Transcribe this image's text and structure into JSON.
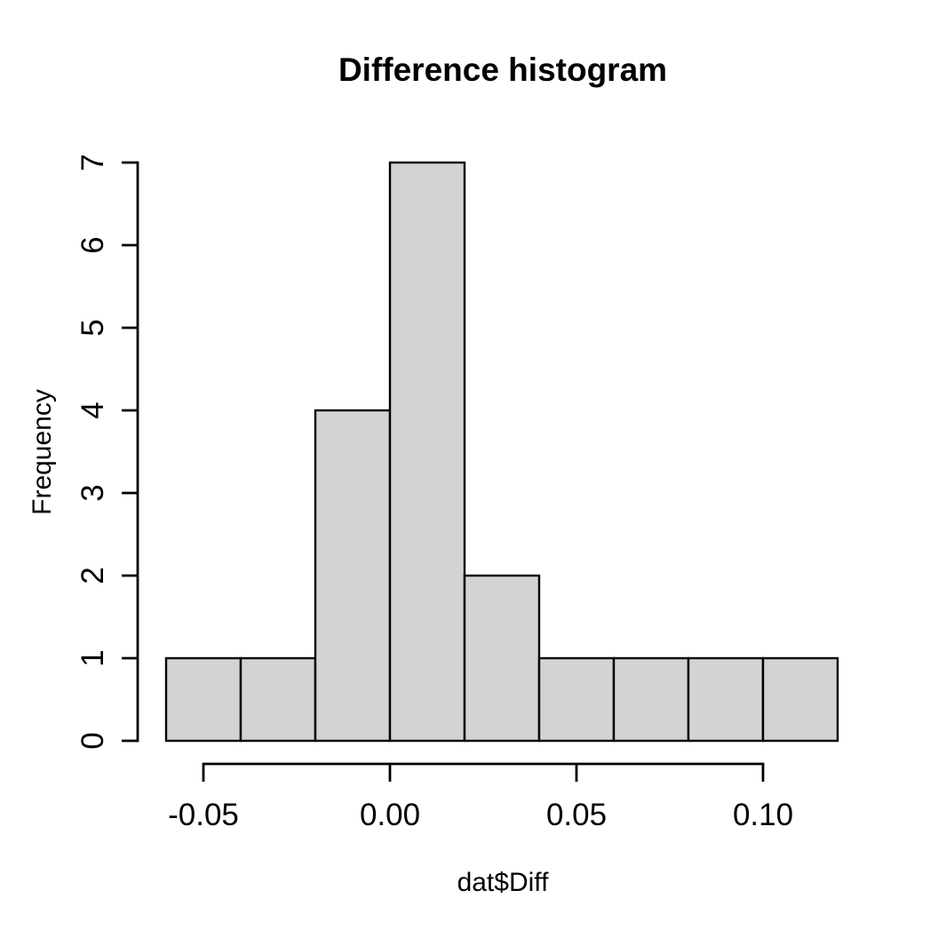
{
  "page": {
    "background": "#FFFFFF"
  },
  "chart_data": {
    "type": "bar",
    "variant": "histogram",
    "title": "Difference histogram",
    "xlabel": "dat$Diff",
    "ylabel": "Frequency",
    "bins": {
      "breaks": [
        -0.06,
        -0.04,
        -0.02,
        0.0,
        0.02,
        0.04,
        0.06,
        0.08,
        0.1,
        0.12
      ],
      "counts": [
        1,
        1,
        4,
        7,
        2,
        1,
        1,
        1,
        1
      ]
    },
    "x_ticks": {
      "values": [
        -0.05,
        0.0,
        0.05,
        0.1
      ],
      "labels": [
        "-0.05",
        "0.00",
        "0.05",
        "0.10"
      ]
    },
    "y_ticks": {
      "values": [
        0,
        1,
        2,
        3,
        4,
        5,
        6,
        7
      ],
      "labels": [
        "0",
        "1",
        "2",
        "3",
        "4",
        "5",
        "6",
        "7"
      ]
    },
    "xlim": [
      -0.06,
      0.12
    ],
    "ylim": [
      0,
      7
    ],
    "grid": false,
    "legend": "none",
    "colors": {
      "bar_fill": "#D3D3D3",
      "bar_border": "#000000",
      "axis": "#000000",
      "text": "#000000",
      "background": "#FFFFFF"
    }
  }
}
